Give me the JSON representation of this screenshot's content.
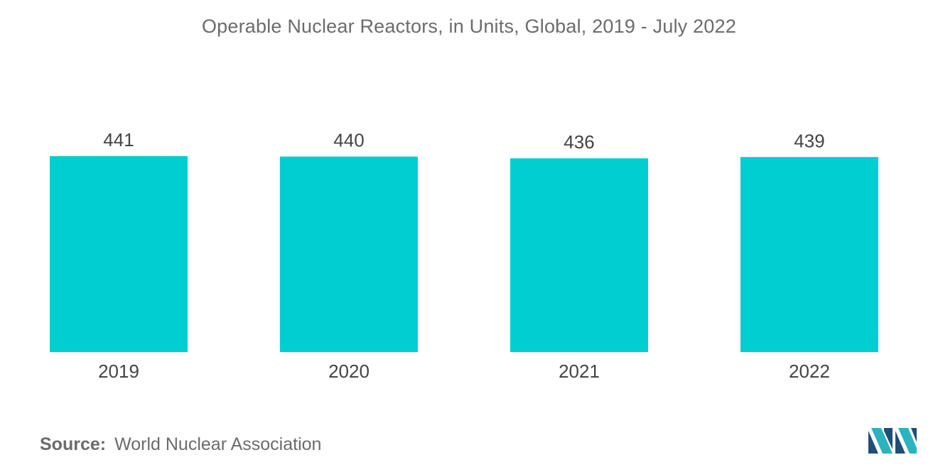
{
  "chart_data": {
    "type": "bar",
    "title": "Operable Nuclear Reactors, in Units, Global, 2019 - July 2022",
    "categories": [
      "2019",
      "2020",
      "2021",
      "2022"
    ],
    "values": [
      441,
      440,
      436,
      439
    ],
    "data_labels": [
      "441",
      "440",
      "436",
      "439"
    ],
    "xlabel": "",
    "ylabel": "",
    "grid": false,
    "legend": "none",
    "bar_color": "#00ced1"
  },
  "source": {
    "label": "Source:",
    "text": "World Nuclear Association"
  },
  "logo": {
    "icon": "mordor-intelligence-logo-icon",
    "colors": [
      "#1f4e79",
      "#2bb3c0"
    ]
  }
}
